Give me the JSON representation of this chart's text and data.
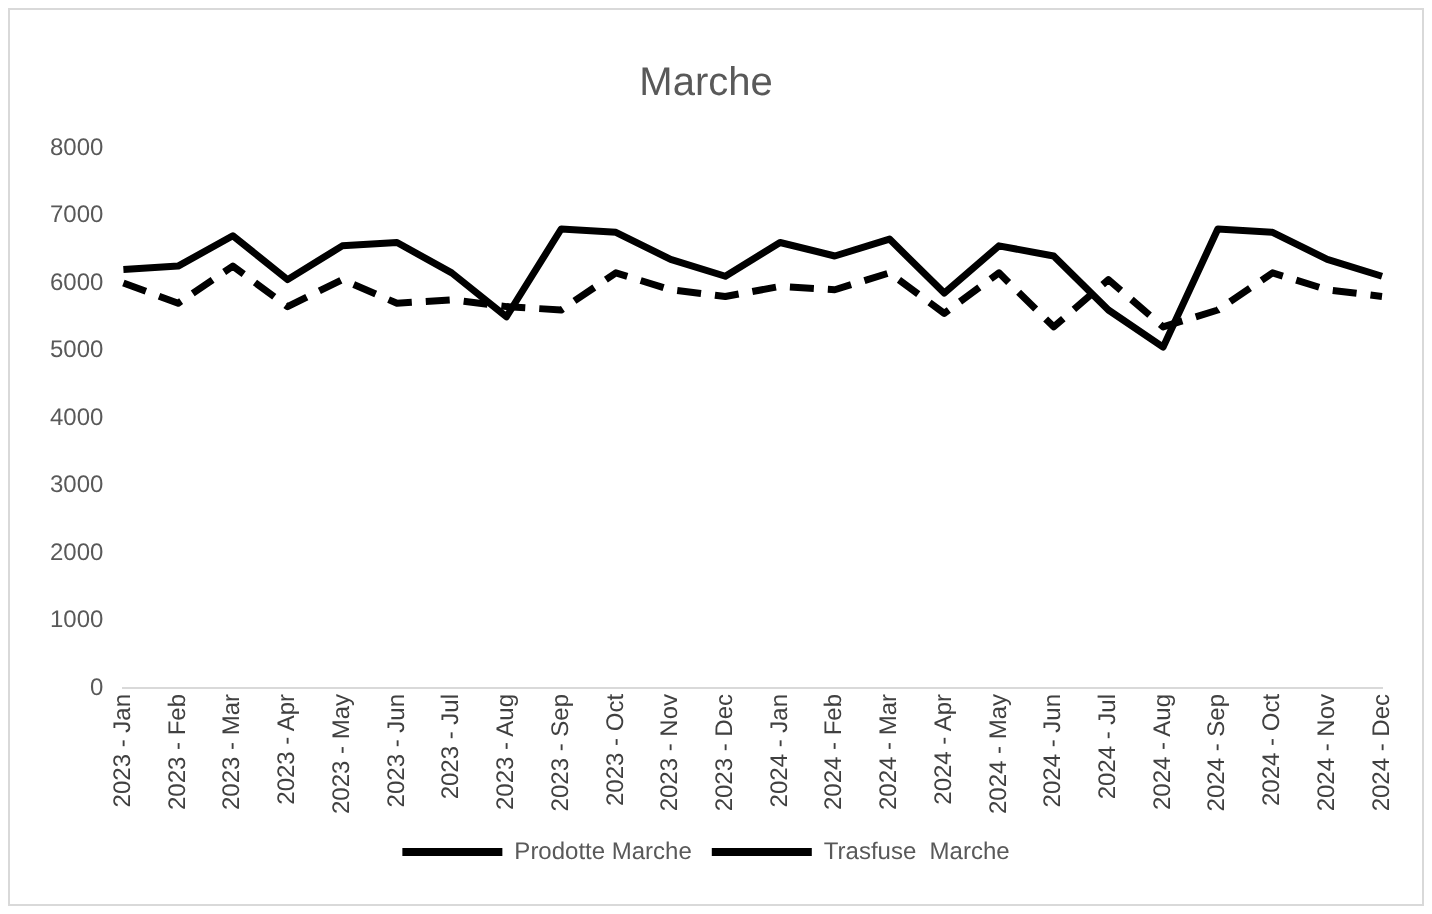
{
  "chart_data": {
    "type": "line",
    "title": "Marche",
    "categories": [
      "2023 - Jan",
      "2023 - Feb",
      "2023 - Mar",
      "2023 - Apr",
      "2023 - May",
      "2023 - Jun",
      "2023 - Jul",
      "2023 - Aug",
      "2023 - Sep",
      "2023 - Oct",
      "2023 - Nov",
      "2023 - Dec",
      "2024 - Jan",
      "2024 - Feb",
      "2024 - Mar",
      "2024 - Apr",
      "2024 - May",
      "2024 - Jun",
      "2024 - Jul",
      "2024 - Aug",
      "2024 - Sep",
      "2024 - Oct",
      "2024 - Nov",
      "2024 - Dec"
    ],
    "series": [
      {
        "name": "Prodotte Marche",
        "color": "#000000",
        "line_style": "solid",
        "values": [
          6200,
          6250,
          6700,
          6050,
          6550,
          6600,
          6150,
          5500,
          6800,
          6750,
          6350,
          6100,
          6600,
          6400,
          6650,
          5850,
          6550,
          6400,
          5600,
          5050,
          6800,
          6750,
          6350,
          6100
        ]
      },
      {
        "name": "Trasfuse  Marche",
        "color": "#000000",
        "line_style": "dashed",
        "values": [
          6000,
          5700,
          6250,
          5650,
          6050,
          5700,
          5750,
          5650,
          5600,
          6150,
          5900,
          5800,
          5950,
          5900,
          6150,
          5550,
          6150,
          5350,
          6050,
          5350,
          5600,
          6150,
          5900,
          5800
        ]
      }
    ],
    "ylim": [
      0,
      8000
    ],
    "yticks": [
      0,
      1000,
      2000,
      3000,
      4000,
      5000,
      6000,
      7000,
      8000
    ],
    "grid": false,
    "legend": "bottom",
    "marker": "none"
  }
}
